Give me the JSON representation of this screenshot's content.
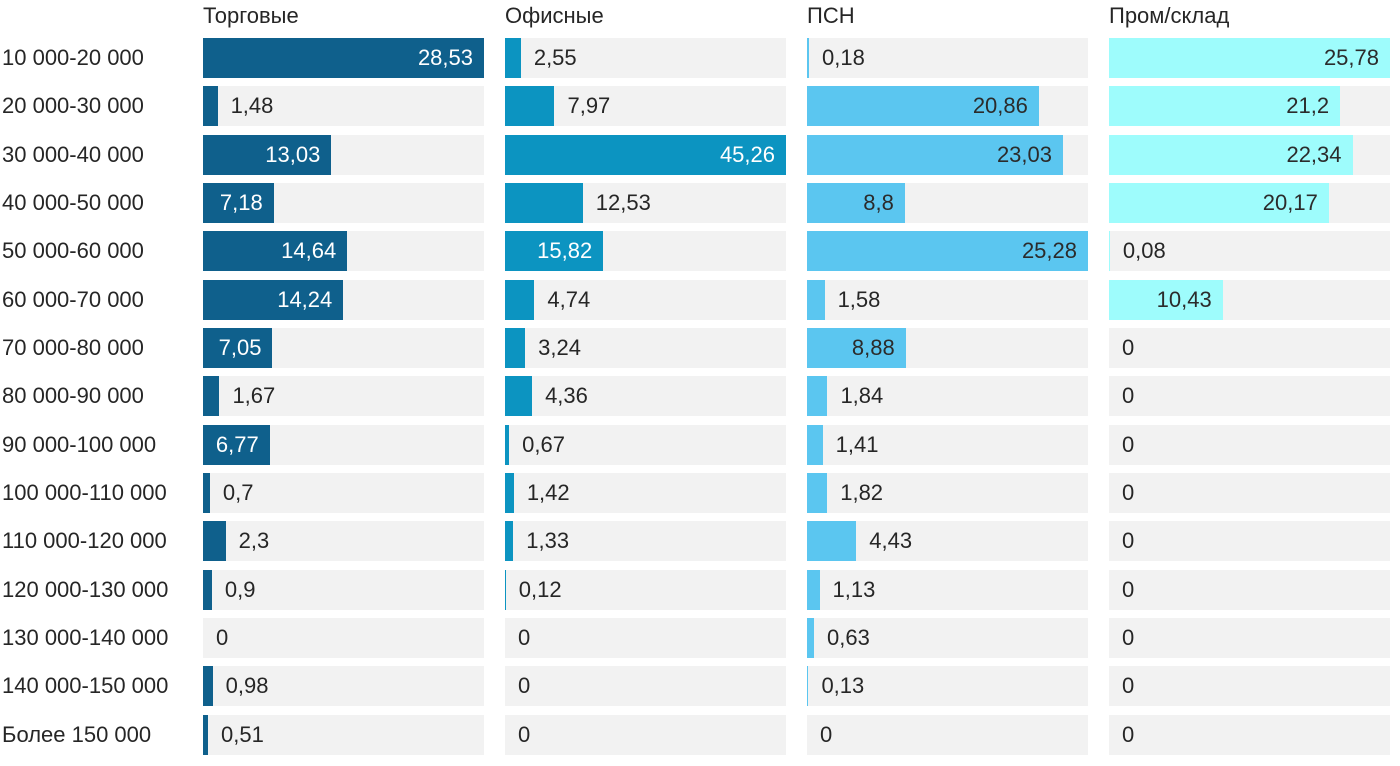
{
  "chart_data": {
    "type": "bar",
    "orientation": "horizontal",
    "scaling": "each series scaled independently to its own max = full track width",
    "title": "",
    "xlabel": "",
    "ylabel": "",
    "grid": false,
    "legend_position": "column headers above each series",
    "categories": [
      "10 000-20 000",
      "20 000-30 000",
      "30 000-40 000",
      "40 000-50 000",
      "50 000-60 000",
      "60 000-70 000",
      "70 000-80 000",
      "80 000-90 000",
      "90 000-100 000",
      "100 000-110 000",
      "110 000-120 000",
      "120 000-130 000",
      "130 000-140 000",
      "140 000-150 000",
      "Более 150 000"
    ],
    "series": [
      {
        "name": "Торговые",
        "color": "#0f608c",
        "label_color_inside": "#ffffff",
        "values": [
          28.53,
          1.48,
          13.03,
          7.18,
          14.64,
          14.24,
          7.05,
          1.67,
          6.77,
          0.7,
          2.3,
          0.9,
          0,
          0.98,
          0.51
        ],
        "labels": [
          "28,53",
          "1,48",
          "13,03",
          "7,18",
          "14,64",
          "14,24",
          "7,05",
          "1,67",
          "6,77",
          "0,7",
          "2,3",
          "0,9",
          "0",
          "0,98",
          "0,51"
        ]
      },
      {
        "name": "Офисные",
        "color": "#0c94c1",
        "label_color_inside": "#ffffff",
        "values": [
          2.55,
          7.97,
          45.26,
          12.53,
          15.82,
          4.74,
          3.24,
          4.36,
          0.67,
          1.42,
          1.33,
          0.12,
          0,
          0,
          0
        ],
        "labels": [
          "2,55",
          "7,97",
          "45,26",
          "12,53",
          "15,82",
          "4,74",
          "3,24",
          "4,36",
          "0,67",
          "1,42",
          "1,33",
          "0,12",
          "0",
          "0",
          "0"
        ]
      },
      {
        "name": "ПСН",
        "color": "#5bc6f0",
        "label_color_inside": "#2b2b2b",
        "values": [
          0.18,
          20.86,
          23.03,
          8.8,
          25.28,
          1.58,
          8.88,
          1.84,
          1.41,
          1.82,
          4.43,
          1.13,
          0.63,
          0.13,
          0
        ],
        "labels": [
          "0,18",
          "20,86",
          "23,03",
          "8,8",
          "25,28",
          "1,58",
          "8,88",
          "1,84",
          "1,41",
          "1,82",
          "4,43",
          "1,13",
          "0,63",
          "0,13",
          "0"
        ]
      },
      {
        "name": "Пром/склад",
        "color": "#9efcfc",
        "label_color_inside": "#2b2b2b",
        "values": [
          25.78,
          21.2,
          22.34,
          20.17,
          0.08,
          10.43,
          0,
          0,
          0,
          0,
          0,
          0,
          0,
          0,
          0
        ],
        "labels": [
          "25,78",
          "21,2",
          "22,34",
          "20,17",
          "0,08",
          "10,43",
          "0",
          "0",
          "0",
          "0",
          "0",
          "0",
          "0",
          "0",
          "0"
        ]
      }
    ],
    "colors": {
      "track": "#f2f2f2",
      "text": "#262626",
      "background": "#ffffff"
    }
  }
}
